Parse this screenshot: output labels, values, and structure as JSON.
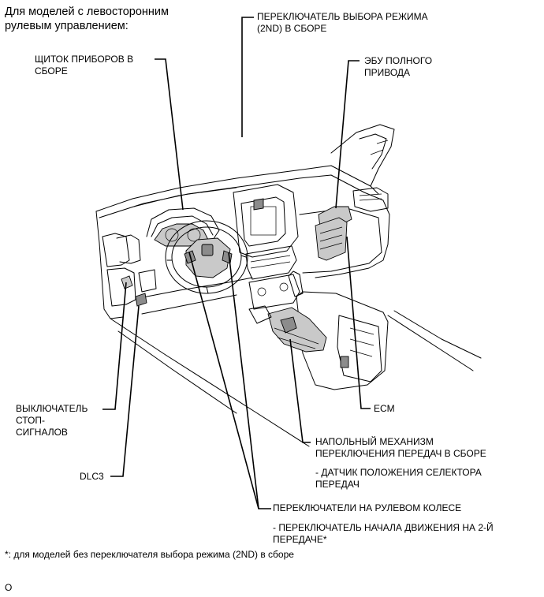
{
  "header": {
    "title": "Для моделей с левосторонним\nрулевым управлением:"
  },
  "labels": {
    "mode_switch": "ПЕРЕКЛЮЧАТЕЛЬ ВЫБОРА РЕЖИМА\n(2ND) В СБОРЕ",
    "instrument_panel": "ЩИТОК ПРИБОРОВ В\nСБОРЕ",
    "awd_ecu": "ЭБУ ПОЛНОГО\nПРИВОДА",
    "stop_light_switch": "ВЫКЛЮЧАТЕЛЬ\nСТОП-\nСИГНАЛОВ",
    "ecm": "ECM",
    "shift_lever": "НАПОЛЬНЫЙ МЕХАНИЗМ\nПЕРЕКЛЮЧЕНИЯ ПЕРЕДАЧ В СБОРЕ",
    "shift_lever_sub": "- ДАТЧИК ПОЛОЖЕНИЯ СЕЛЕКТОРА\nПЕРЕДАЧ",
    "dlc3": "DLC3",
    "steering_switches": "ПЕРЕКЛЮЧАТЕЛИ НА РУЛЕВОМ КОЛЕСЕ",
    "steering_switches_sub": "- ПЕРЕКЛЮЧАТЕЛЬ НАЧАЛА ДВИЖЕНИЯ НА 2-Й\nПЕРЕДАЧЕ*"
  },
  "footnote": "*: для моделей без переключателя выбора режима (2ND) в сборе",
  "figure_code": "O"
}
